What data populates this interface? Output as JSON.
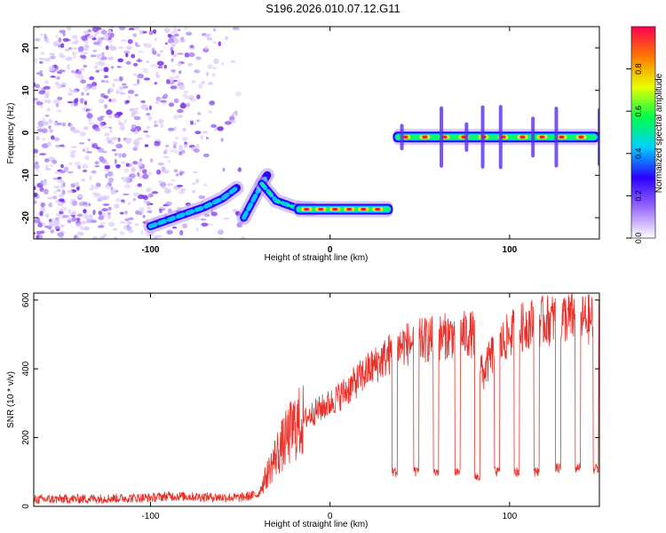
{
  "figure": {
    "title": "S196.2026.010.07.12.G11"
  },
  "chart_data": [
    {
      "type": "heatmap",
      "title": "S196.2026.010.07.12.G11",
      "xlabel": "Height of straight line (km)",
      "ylabel": "Frequency (Hz)",
      "xlim": [
        -165,
        150
      ],
      "ylim": [
        -25,
        25
      ],
      "xticks": [
        -100,
        0,
        100
      ],
      "yticks": [
        -20,
        -10,
        0,
        10,
        20
      ],
      "colorbar": {
        "label": "Normalized spectral amplitude",
        "range": [
          0.0,
          1.0
        ],
        "ticks": [
          "0.0",
          "0.2",
          "0.4",
          "0.6",
          "0.8"
        ],
        "colors": [
          "#ffffff",
          "#9b6bff",
          "#2b00ff",
          "#00d0ff",
          "#00ff4a",
          "#e8ff00",
          "#ff7a00",
          "#ff0050"
        ]
      },
      "features": [
        {
          "name": "noise region",
          "x_range": [
            -165,
            -48
          ],
          "freq_range": [
            -25,
            25
          ],
          "amplitude": 0.1
        },
        {
          "name": "rising branch",
          "points": [
            [
              -100,
              -22
            ],
            [
              -90,
              -20.5
            ],
            [
              -80,
              -19
            ],
            [
              -70,
              -17.5
            ],
            [
              -60,
              -15.5
            ],
            [
              -52,
              -13
            ]
          ],
          "amplitude": 0.3
        },
        {
          "name": "crossing branch",
          "points": [
            [
              -48,
              -20
            ],
            [
              -43,
              -16
            ],
            [
              -38,
              -12
            ],
            [
              -35,
              -10
            ]
          ],
          "amplitude": 0.3
        },
        {
          "name": "descending branch",
          "points": [
            [
              -38,
              -12
            ],
            [
              -30,
              -16
            ],
            [
              -20,
              -17.5
            ],
            [
              -10,
              -18
            ]
          ],
          "amplitude": 0.4
        },
        {
          "name": "plateau at -18 Hz",
          "x_range": [
            -20,
            35
          ],
          "frequency": -18,
          "amplitude": 0.85
        },
        {
          "name": "plateau at -1 Hz",
          "x_range": [
            35,
            150
          ],
          "frequency": -1,
          "amplitude": 0.8
        }
      ]
    },
    {
      "type": "line",
      "xlabel": "Height of straight line (km)",
      "ylabel": "SNR (10 * v/v)",
      "xlim": [
        -165,
        150
      ],
      "ylim": [
        0,
        620
      ],
      "xticks": [
        -100,
        0,
        100
      ],
      "yticks": [
        0,
        200,
        400,
        600
      ],
      "series": [
        {
          "name": "SNR",
          "color": "#e8312b",
          "trend": {
            "x": [
              -165,
              -100,
              -90,
              -50,
              -40,
              -30,
              -20,
              -10,
              0,
              10,
              20,
              30,
              40,
              50,
              60,
              70,
              80,
              85,
              90,
              100,
              110,
              120,
              130,
              140,
              150
            ],
            "y": [
              20,
              25,
              30,
              25,
              35,
              150,
              230,
              270,
              300,
              340,
              390,
              430,
              470,
              480,
              490,
              500,
              500,
              380,
              440,
              500,
              530,
              540,
              550,
              545,
              540
            ]
          },
          "dropouts": [
            {
              "center": 36,
              "width": 3,
              "value": 100
            },
            {
              "center": 48,
              "width": 3,
              "value": 100
            },
            {
              "center": 59,
              "width": 3,
              "value": 100
            },
            {
              "center": 71,
              "width": 3,
              "value": 100
            },
            {
              "center": 82,
              "width": 3,
              "value": 85
            },
            {
              "center": 93,
              "width": 3,
              "value": 100
            },
            {
              "center": 104,
              "width": 3,
              "value": 100
            },
            {
              "center": 115,
              "width": 3,
              "value": 100
            },
            {
              "center": 127,
              "width": 3,
              "value": 110
            },
            {
              "center": 138,
              "width": 3,
              "value": 110
            },
            {
              "center": 148,
              "width": 3,
              "value": 110
            }
          ]
        }
      ]
    }
  ]
}
